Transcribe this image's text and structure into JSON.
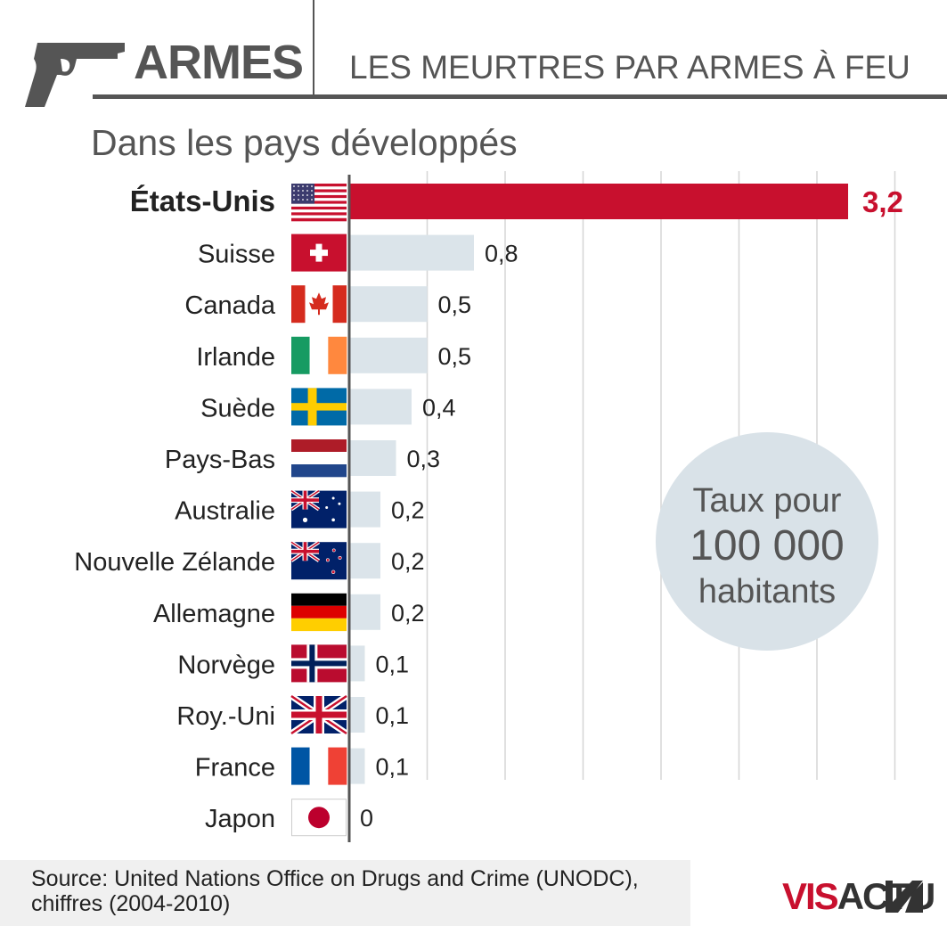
{
  "header": {
    "category": "ARMES",
    "headline": "LES MEURTRES PAR ARMES À FEU",
    "subtitle": "Dans les pays développés"
  },
  "colors": {
    "highlight": "#c8102e",
    "bar": "#dbe4ea",
    "text": "#555555"
  },
  "chart_data": {
    "type": "bar",
    "orientation": "horizontal",
    "categories": [
      "États-Unis",
      "Suisse",
      "Canada",
      "Irlande",
      "Suède",
      "Pays-Bas",
      "Australie",
      "Nouvelle Zélande",
      "Allemagne",
      "Norvège",
      "Roy.-Uni",
      "France",
      "Japon"
    ],
    "values": [
      3.2,
      0.8,
      0.5,
      0.5,
      0.4,
      0.3,
      0.2,
      0.2,
      0.2,
      0.1,
      0.1,
      0.1,
      0
    ],
    "value_labels": [
      "3,2",
      "0,8",
      "0,5",
      "0,5",
      "0,4",
      "0,3",
      "0,2",
      "0,2",
      "0,2",
      "0,1",
      "0,1",
      "0,1",
      "0"
    ],
    "flags": [
      "us",
      "ch",
      "ca",
      "ie",
      "se",
      "nl",
      "au",
      "nz",
      "de",
      "no",
      "gb",
      "fr",
      "jp"
    ],
    "highlight_category": "États-Unis",
    "xlim": [
      0,
      3.5
    ],
    "grid": true
  },
  "annotation": {
    "line1": "Taux pour",
    "line2": "100 000",
    "line3": "habitants"
  },
  "source": {
    "line1": "Source: United Nations Office on Drugs and Crime (UNODC),",
    "line2": "chiffres (2004-2010)"
  },
  "logo": {
    "part1": "VIS",
    "part2": "ACTU"
  }
}
